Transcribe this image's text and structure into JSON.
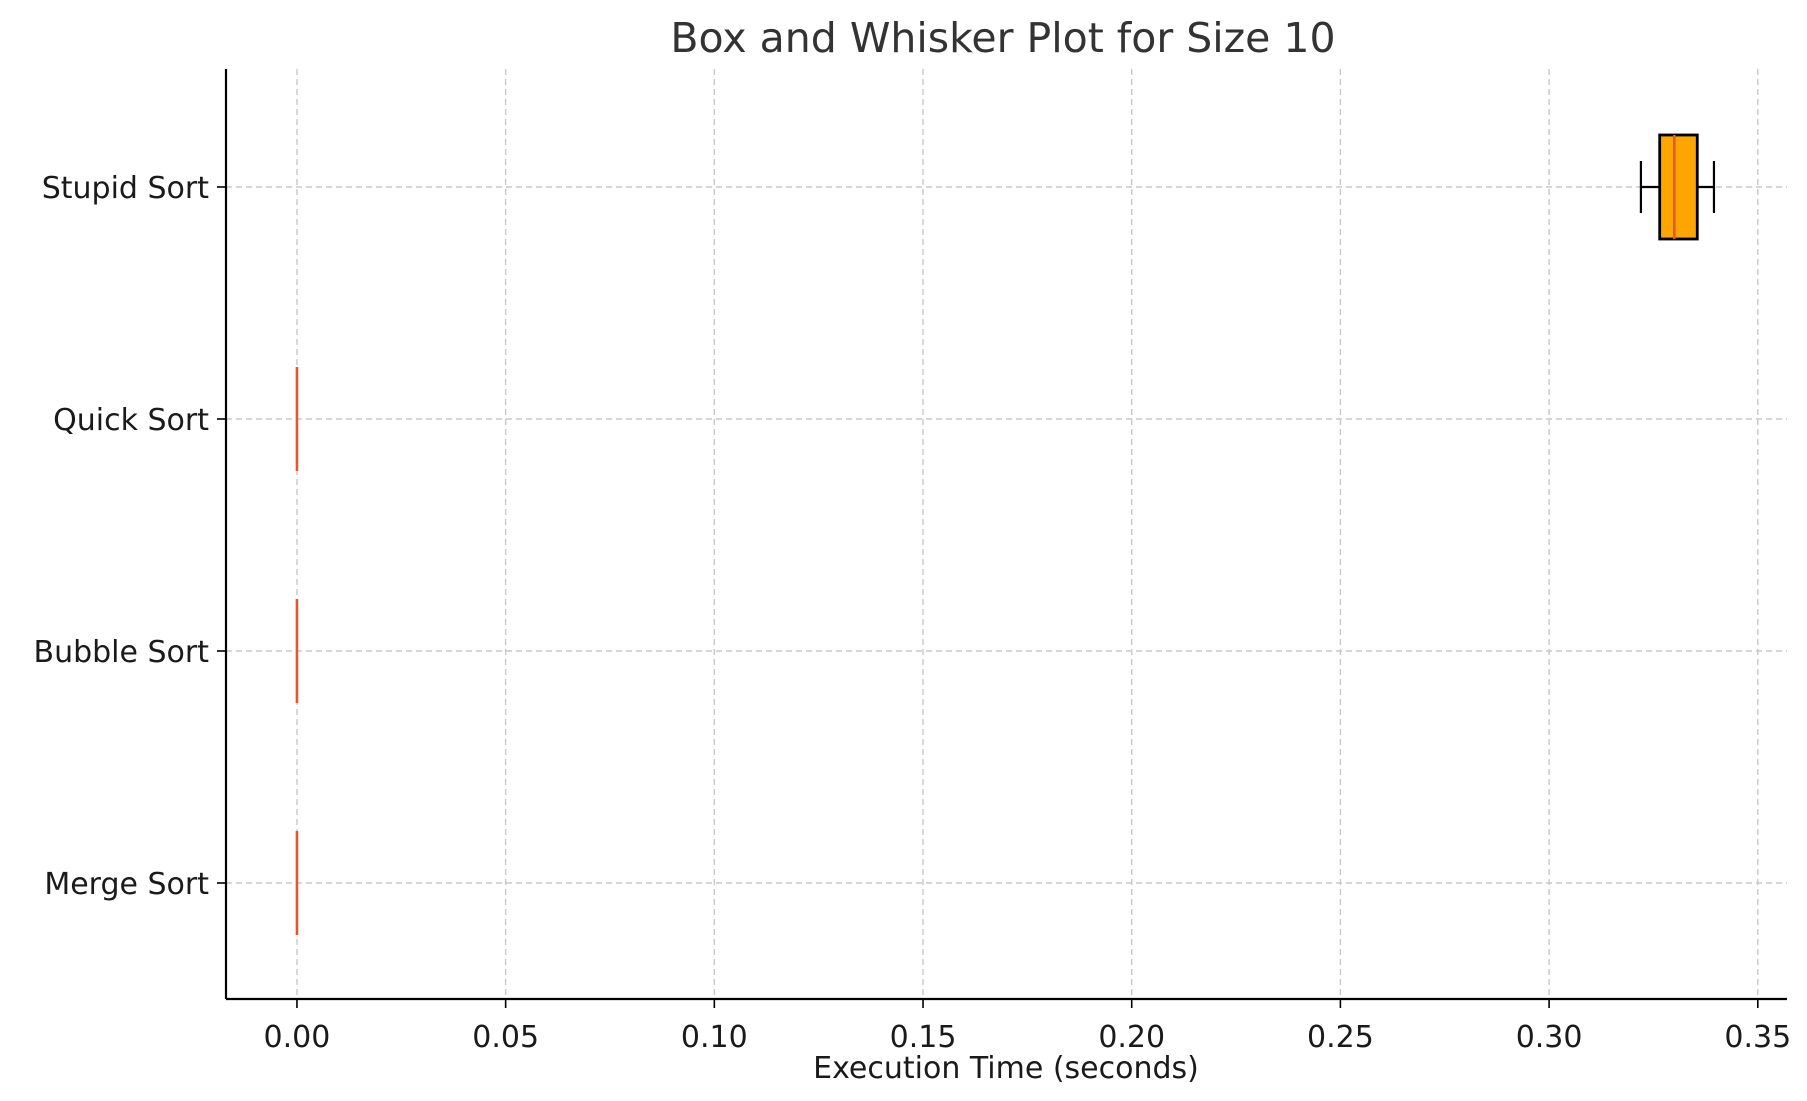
{
  "chart_data": {
    "type": "boxplot",
    "orientation": "horizontal",
    "title": "Box and Whisker Plot for Size 10",
    "xlabel": "Execution Time (seconds)",
    "ylabel": "",
    "xlim": [
      -0.017,
      0.357
    ],
    "x_ticks": [
      0.0,
      0.05,
      0.1,
      0.15,
      0.2,
      0.25,
      0.3,
      0.35
    ],
    "x_tick_labels": [
      "0.00",
      "0.05",
      "0.10",
      "0.15",
      "0.20",
      "0.25",
      "0.30",
      "0.35"
    ],
    "grid": true,
    "categories": [
      "Merge Sort",
      "Bubble Sort",
      "Quick Sort",
      "Stupid Sort"
    ],
    "series": [
      {
        "category": "Merge Sort",
        "min": 0.0,
        "q1": 0.0,
        "median": 0.0,
        "q3": 0.0,
        "max": 0.0
      },
      {
        "category": "Bubble Sort",
        "min": 0.0,
        "q1": 0.0,
        "median": 0.0,
        "q3": 0.0,
        "max": 0.0
      },
      {
        "category": "Quick Sort",
        "min": 0.0,
        "q1": 0.0,
        "median": 0.0,
        "q3": 0.0,
        "max": 0.0
      },
      {
        "category": "Stupid Sort",
        "min": 0.322,
        "q1": 0.3265,
        "median": 0.33,
        "q3": 0.3355,
        "max": 0.3395
      }
    ],
    "colors": {
      "box_fill": "#FFA500",
      "box_edge": "#000000",
      "median": "#E4572E",
      "grid": "#C8C8C8",
      "axis": "#000000",
      "title": "#333333",
      "text": "#1A1A1A"
    }
  }
}
